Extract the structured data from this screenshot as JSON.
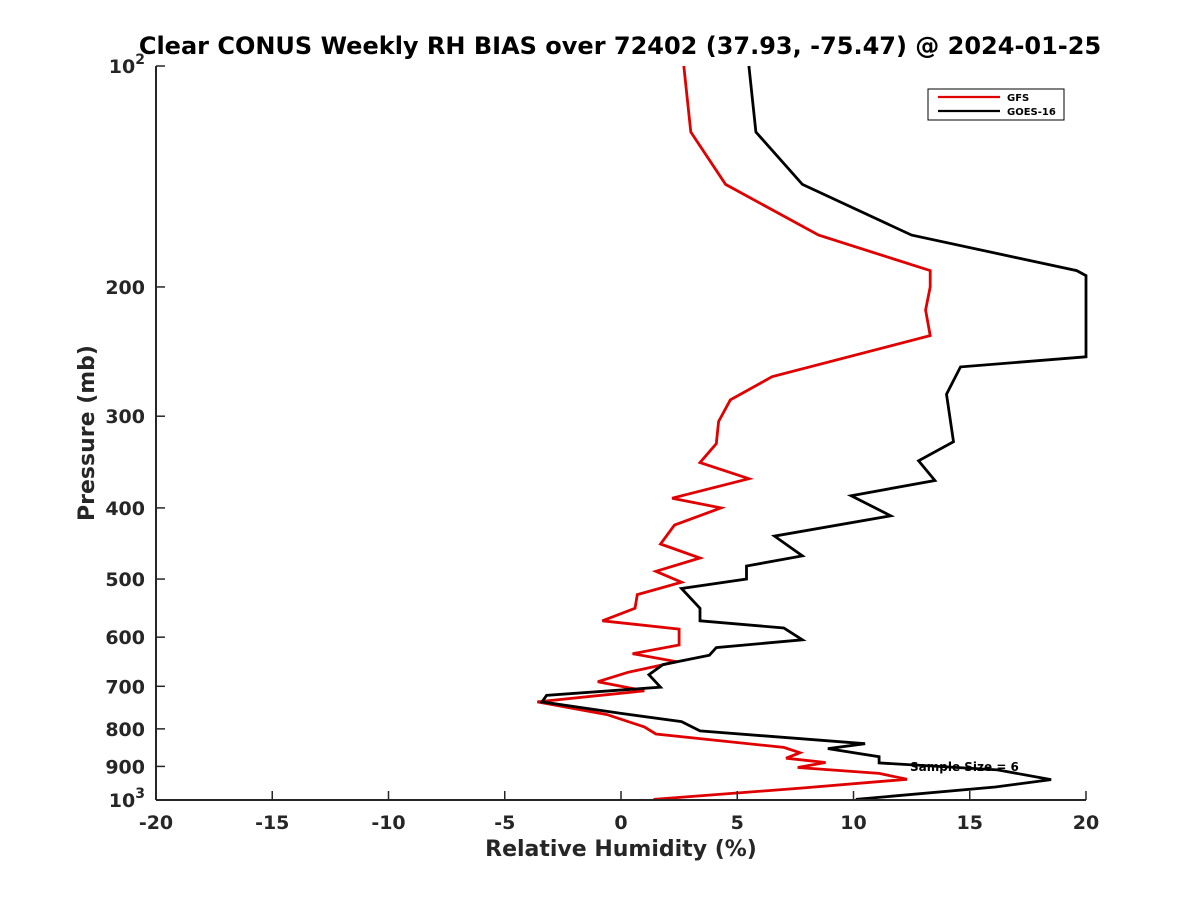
{
  "chart_data": {
    "type": "line",
    "title": "Clear CONUS Weekly RH BIAS over 72402 (37.93, -75.47) @ 2024-01-25",
    "xlabel": "Relative Humidity (%)",
    "ylabel": "Pressure (mb)",
    "xlim": [
      -20,
      20
    ],
    "ylim": [
      100,
      1000
    ],
    "yscale": "log",
    "y_reversed": true,
    "x_ticks": [
      -20,
      -15,
      -10,
      -5,
      0,
      5,
      10,
      15,
      20
    ],
    "x_tick_labels": [
      "-20",
      "-15",
      "-10",
      "-5",
      "0",
      "5",
      "10",
      "15",
      "20"
    ],
    "y_ticks": [
      {
        "value": 100,
        "base": "10",
        "exp": "2"
      },
      {
        "value": 200,
        "label": "200"
      },
      {
        "value": 300,
        "label": "300"
      },
      {
        "value": 400,
        "label": "400"
      },
      {
        "value": 500,
        "label": "500"
      },
      {
        "value": 600,
        "label": "600"
      },
      {
        "value": 700,
        "label": "700"
      },
      {
        "value": 800,
        "label": "800"
      },
      {
        "value": 900,
        "label": "900"
      },
      {
        "value": 1000,
        "base": "10",
        "exp": "3"
      }
    ],
    "legend": {
      "location": "top-right",
      "entries": [
        "GFS",
        "GOES-16"
      ]
    },
    "annotation": "Sample Size = 6",
    "series": [
      {
        "name": "GFS",
        "color": "#e00000",
        "points": [
          [
            2.7,
            100
          ],
          [
            3.0,
            123
          ],
          [
            4.5,
            145
          ],
          [
            8.5,
            170
          ],
          [
            13.3,
            190
          ],
          [
            13.3,
            200
          ],
          [
            13.1,
            215
          ],
          [
            13.3,
            233
          ],
          [
            6.5,
            265
          ],
          [
            4.7,
            285
          ],
          [
            4.2,
            305
          ],
          [
            4.1,
            327
          ],
          [
            3.4,
            347
          ],
          [
            5.5,
            365
          ],
          [
            2.2,
            388
          ],
          [
            4.3,
            400
          ],
          [
            2.3,
            422
          ],
          [
            1.7,
            448
          ],
          [
            3.4,
            468
          ],
          [
            1.5,
            488
          ],
          [
            2.6,
            505
          ],
          [
            0.7,
            525
          ],
          [
            0.6,
            548
          ],
          [
            -0.8,
            570
          ],
          [
            2.5,
            585
          ],
          [
            2.5,
            615
          ],
          [
            0.5,
            632
          ],
          [
            2.4,
            648
          ],
          [
            0.3,
            670
          ],
          [
            -1.0,
            690
          ],
          [
            1.0,
            710
          ],
          [
            -3.6,
            735
          ],
          [
            -0.6,
            765
          ],
          [
            1.0,
            795
          ],
          [
            1.5,
            813
          ],
          [
            7.0,
            848
          ],
          [
            7.7,
            862
          ],
          [
            7.1,
            877
          ],
          [
            8.8,
            889
          ],
          [
            7.6,
            903
          ],
          [
            11.1,
            920
          ],
          [
            12.3,
            937
          ],
          [
            7.8,
            963
          ],
          [
            1.4,
            998
          ]
        ]
      },
      {
        "name": "GOES-16",
        "color": "#000000",
        "points": [
          [
            5.5,
            100
          ],
          [
            5.8,
            123
          ],
          [
            7.8,
            145
          ],
          [
            12.5,
            170
          ],
          [
            19.6,
            190
          ],
          [
            20.0,
            193
          ],
          [
            20.0,
            249
          ],
          [
            14.6,
            257
          ],
          [
            14.0,
            280
          ],
          [
            14.3,
            325
          ],
          [
            12.8,
            345
          ],
          [
            13.5,
            367
          ],
          [
            9.9,
            385
          ],
          [
            11.6,
            410
          ],
          [
            6.6,
            437
          ],
          [
            7.8,
            465
          ],
          [
            5.4,
            480
          ],
          [
            5.4,
            500
          ],
          [
            2.6,
            515
          ],
          [
            3.4,
            548
          ],
          [
            3.4,
            570
          ],
          [
            7.0,
            583
          ],
          [
            7.8,
            605
          ],
          [
            4.1,
            620
          ],
          [
            3.8,
            635
          ],
          [
            1.8,
            654
          ],
          [
            1.2,
            675
          ],
          [
            1.7,
            702
          ],
          [
            -3.2,
            720
          ],
          [
            -3.4,
            735
          ],
          [
            0.0,
            762
          ],
          [
            2.6,
            782
          ],
          [
            3.4,
            805
          ],
          [
            10.5,
            838
          ],
          [
            8.9,
            851
          ],
          [
            11.1,
            873
          ],
          [
            11.1,
            890
          ],
          [
            16.2,
            910
          ],
          [
            18.5,
            938
          ],
          [
            16.1,
            960
          ],
          [
            10.1,
            998
          ]
        ]
      }
    ]
  }
}
